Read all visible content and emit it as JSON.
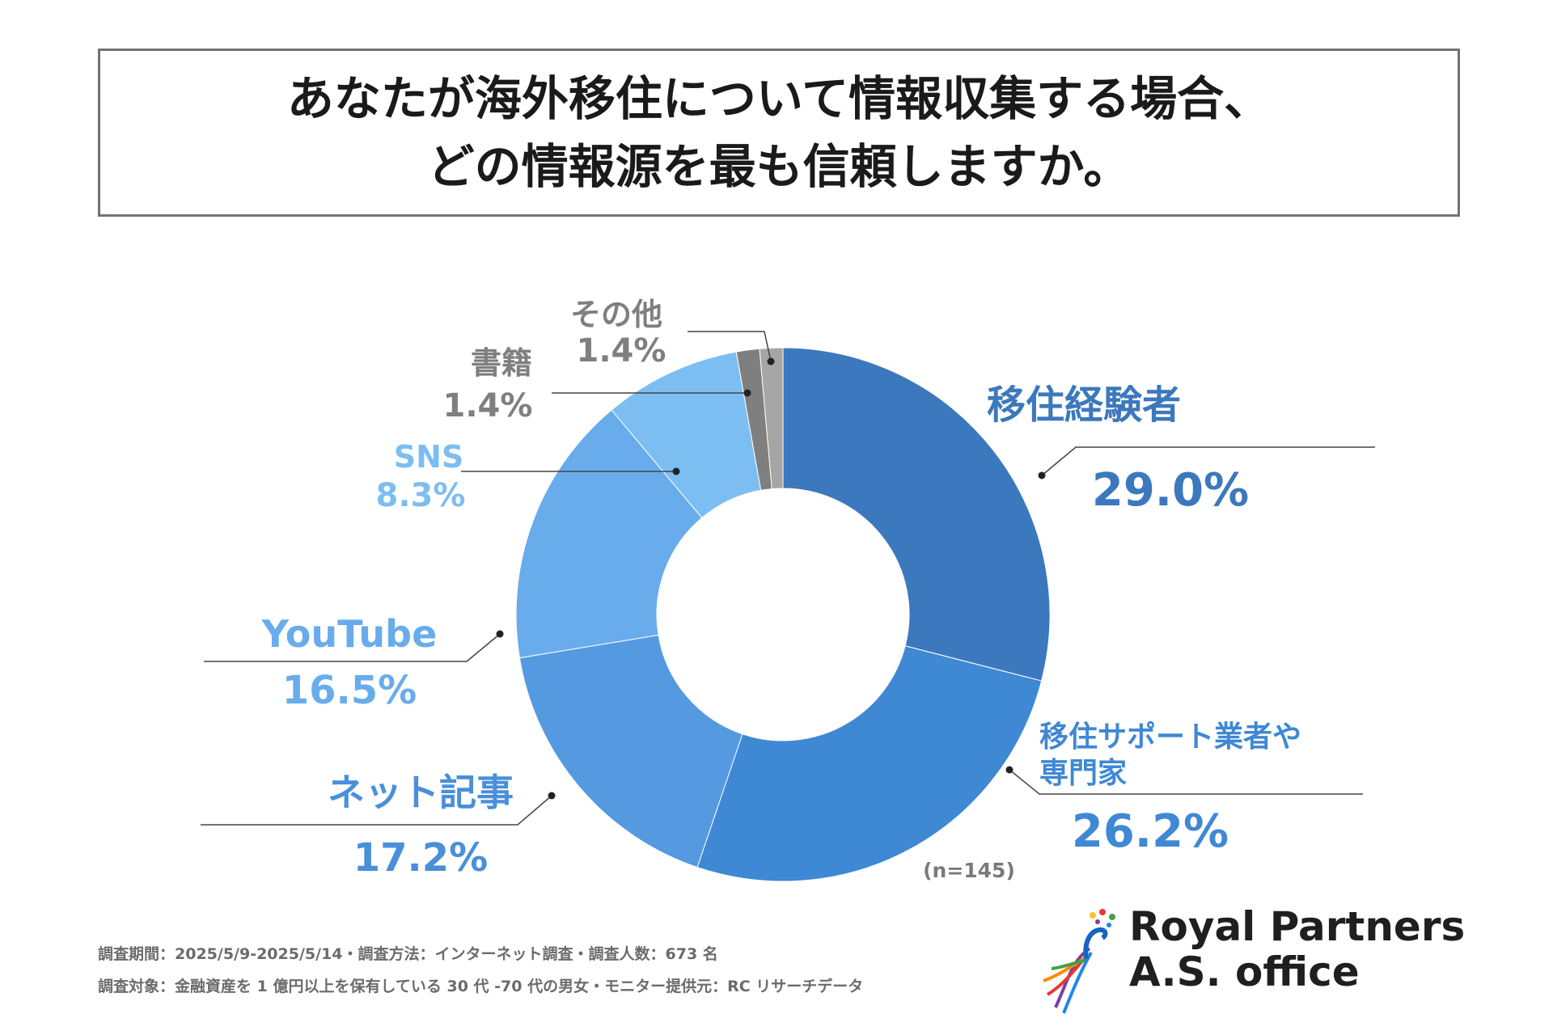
{
  "title": {
    "line1": "あなたが海外移住について情報収集する場合、",
    "line2": "どの情報源を最も信頼しますか。"
  },
  "chart_data": {
    "type": "pie",
    "categories": [
      "移住経験者",
      "移住サポート業者や専門家",
      "ネット記事",
      "YouTube",
      "SNS",
      "書籍",
      "その他"
    ],
    "values": [
      29.0,
      26.2,
      17.2,
      16.5,
      8.3,
      1.4,
      1.4
    ],
    "value_labels": [
      "29.0%",
      "26.2%",
      "17.2%",
      "16.5%",
      "8.3%",
      "1.4%",
      "1.4%"
    ],
    "colors": [
      "#3c78bd",
      "#3f88d4",
      "#559ae0",
      "#68aceb",
      "#7dbef2",
      "#7f7f7f",
      "#a6a6a6"
    ],
    "label_colors": [
      "#3c78bd",
      "#3f88d4",
      "#4a8fd9",
      "#68aceb",
      "#7dbef2",
      "#7f7f7f",
      "#7f7f7f"
    ],
    "sample_note": "(n=145)"
  },
  "footer": {
    "line1": "調査期間：2025/5/9-2025/5/14・調査方法：インターネット調査・調査人数：673 名",
    "line2": "調査対象：金融資産を 1 億円以上を保有している 30 代 -70 代の男女・モニター提供元：RC リサーチデータ"
  },
  "logo": {
    "line1": "Royal Partners",
    "line2": "A.S. office"
  }
}
